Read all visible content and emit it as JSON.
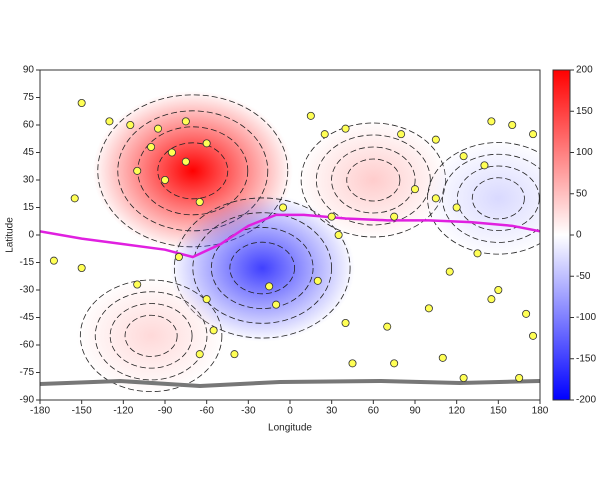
{
  "chart_data": {
    "type": "map-field",
    "x_label": "Longitude",
    "y_label": "Latitude",
    "xlim": [
      -180,
      180
    ],
    "xticks": [
      -180,
      -150,
      -120,
      -90,
      -60,
      -30,
      0,
      30,
      60,
      90,
      120,
      150,
      180
    ],
    "ylim": [
      -90,
      90
    ],
    "yticks": [
      -90,
      -75,
      -60,
      -45,
      -30,
      -15,
      0,
      15,
      30,
      45,
      60,
      75,
      90
    ],
    "colorbar": {
      "clim": [
        -200,
        200
      ],
      "ticks": [
        -200,
        -150,
        -100,
        -50,
        0,
        50,
        100,
        150,
        200
      ],
      "colors": [
        "#0000ff",
        "#ffffff",
        "#ff0000"
      ]
    },
    "field": {
      "x": [
        -70,
        -20,
        60,
        -100,
        150
      ],
      "y": [
        35,
        -18,
        30,
        -55,
        20
      ],
      "values": [
        200,
        -150,
        40,
        30,
        -30
      ]
    },
    "stations": {
      "color": "#ffff55",
      "x": [
        -150,
        -130,
        -115,
        -95,
        -75,
        -60,
        -100,
        -85,
        -75,
        -110,
        -90,
        -65,
        -155,
        -170,
        -150,
        -110,
        -80,
        -60,
        -55,
        -65,
        -15,
        -10,
        20,
        40,
        15,
        25,
        40,
        80,
        105,
        125,
        140,
        145,
        160,
        175,
        90,
        75,
        105,
        120,
        135,
        115,
        145,
        150,
        170,
        175,
        100,
        45,
        75,
        110,
        125,
        165,
        -40,
        -5,
        30,
        35,
        70
      ],
      "y": [
        72,
        62,
        60,
        58,
        62,
        50,
        48,
        45,
        40,
        35,
        30,
        18,
        20,
        -14,
        -18,
        -27,
        -12,
        -35,
        -52,
        -65,
        -28,
        -38,
        -25,
        -48,
        65,
        55,
        58,
        55,
        52,
        43,
        38,
        62,
        60,
        55,
        25,
        10,
        20,
        15,
        -10,
        -20,
        -35,
        -30,
        -43,
        -55,
        -40,
        -70,
        -70,
        -67,
        -78,
        -78,
        -65,
        15,
        10,
        0,
        -50
      ]
    },
    "dip_equator": {
      "color": "#e020e0",
      "x": [
        -180,
        -150,
        -120,
        -90,
        -70,
        -50,
        -30,
        -10,
        10,
        40,
        70,
        100,
        130,
        160,
        180
      ],
      "y": [
        2,
        -2,
        -5,
        -8,
        -12,
        -5,
        5,
        11,
        11,
        9,
        8,
        8,
        7,
        5,
        2
      ]
    }
  }
}
